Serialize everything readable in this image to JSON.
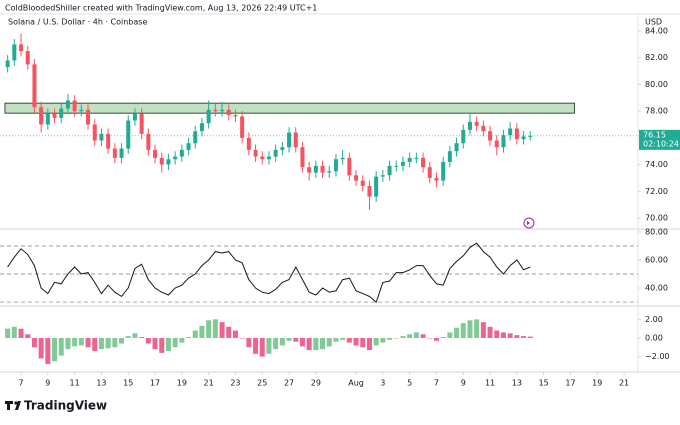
{
  "header": "ColdBloodedShiller created with TradingView.com, Aug 13, 2026 22:49 UTC+1",
  "logo": "TradingView",
  "chart_data": {
    "type": "candlestick",
    "subtitle": "Solana / U.S. Dollar · 4h · Coinbase",
    "currency": "USD",
    "up_color": "#22ab94",
    "down_color": "#f7525f",
    "x": [
      6,
      6.5,
      7,
      7.5,
      8,
      8.5,
      9,
      9.5,
      10,
      10.5,
      11,
      11.5,
      12,
      12.5,
      13,
      13.5,
      14,
      14.5,
      15,
      15.5,
      16,
      16.5,
      17,
      17.5,
      18,
      18.5,
      19,
      19.5,
      20,
      20.5,
      21,
      21.5,
      22,
      22.5,
      23,
      23.5,
      24,
      24.5,
      25,
      25.5,
      26,
      26.5,
      27,
      27.5,
      28,
      28.5,
      29,
      29.5,
      30,
      30.5,
      31,
      31.5,
      32,
      32.5,
      33,
      33.5,
      34,
      34.5,
      35,
      35.5,
      36,
      36.5,
      37,
      37.5,
      38,
      38.5,
      39,
      39.5,
      40,
      40.5,
      41,
      41.5,
      42,
      42.5,
      43,
      43.5,
      44,
      44.5,
      45
    ],
    "open": [
      81.3,
      81.8,
      83,
      82.5,
      81.5,
      78.3,
      77,
      77.8,
      77.5,
      78.2,
      78.8,
      78,
      78.1,
      77,
      75.8,
      76.3,
      75.2,
      74.5,
      75.2,
      77.3,
      77.8,
      76.3,
      75.1,
      74.5,
      74,
      74.4,
      74.6,
      75.1,
      75.6,
      76.5,
      77.1,
      78.1,
      78,
      78.1,
      77.7,
      77.6,
      76,
      75.1,
      74.6,
      74.4,
      74.6,
      75.1,
      75.3,
      76.4,
      75.3,
      73.8,
      73.4,
      73.9,
      73.4,
      73.5,
      74.4,
      74.5,
      73.2,
      72.8,
      72.4,
      71.6,
      73.1,
      73.2,
      73.9,
      73.9,
      74.2,
      74.5,
      74.5,
      73.8,
      73,
      72.8,
      74.2,
      75,
      75.6,
      76.6,
      77.2,
      76.9,
      76.5,
      75.8,
      75.3,
      76.2,
      76.7,
      75.9,
      76.1
    ],
    "high": [
      82.2,
      83.4,
      83.8,
      82.9,
      81.9,
      78.7,
      78.2,
      78.2,
      78.6,
      79.3,
      79.2,
      78.5,
      78.5,
      77.4,
      76.7,
      76.7,
      75.6,
      75.6,
      77.7,
      78.2,
      78.2,
      76.7,
      75.5,
      74.9,
      74.8,
      75,
      75.5,
      76,
      76.9,
      77.5,
      78.8,
      78.6,
      78.7,
      78.5,
      78.1,
      78,
      76.4,
      75.5,
      75,
      75,
      75.5,
      75.7,
      76.8,
      76.8,
      75.7,
      74.2,
      74.3,
      74.3,
      73.9,
      74.8,
      75.1,
      74.9,
      73.6,
      73.2,
      72.8,
      73.5,
      73.6,
      74.3,
      74.3,
      74.6,
      74.9,
      74.9,
      74.9,
      74.2,
      73.4,
      74.6,
      75.4,
      76,
      77,
      77.8,
      77.6,
      77.3,
      76.9,
      76.2,
      76.6,
      77.2,
      77.1,
      76.5,
      76.5
    ],
    "low": [
      80.9,
      81.4,
      82.1,
      81.1,
      77.9,
      76.4,
      76.6,
      77.1,
      77.1,
      77.8,
      77.6,
      77.6,
      76.6,
      75.4,
      75.4,
      74.8,
      74.1,
      74.1,
      74.8,
      76.9,
      75.9,
      74.7,
      74.1,
      73.4,
      73.6,
      74,
      74.2,
      74.7,
      75.2,
      76.1,
      76.7,
      77.6,
      77.6,
      77.3,
      77.2,
      75.6,
      74.7,
      74.2,
      74,
      74,
      74.2,
      74.7,
      74.9,
      74.9,
      73.4,
      72.8,
      73,
      73,
      73,
      73.1,
      74,
      72.8,
      72.4,
      72,
      70.6,
      71.2,
      72.7,
      72.8,
      73.5,
      73.5,
      73.8,
      74.1,
      73.4,
      72.6,
      72.3,
      72.4,
      73.8,
      74.6,
      75.2,
      76.2,
      76.5,
      76.1,
      75.4,
      74.7,
      74.9,
      75.8,
      75.5,
      75.5,
      75.8
    ],
    "close": [
      81.8,
      83,
      82.5,
      81.5,
      78.3,
      77,
      77.8,
      77.5,
      78.2,
      78.8,
      78,
      78.1,
      77,
      75.8,
      76.3,
      75.2,
      74.5,
      75.2,
      77.3,
      77.8,
      76.3,
      75.1,
      74.5,
      74,
      74.4,
      74.6,
      75.1,
      75.6,
      76.5,
      77.1,
      78.1,
      78,
      78.1,
      77.7,
      77.6,
      76,
      75.1,
      74.6,
      74.4,
      74.6,
      75.1,
      75.3,
      76.4,
      75.3,
      73.8,
      73.4,
      73.9,
      73.4,
      73.5,
      74.4,
      74.5,
      73.2,
      72.8,
      72.4,
      71.6,
      73.1,
      73.2,
      73.9,
      73.9,
      74.2,
      74.5,
      74.5,
      73.8,
      73,
      72.8,
      74.2,
      75,
      75.6,
      76.6,
      77.2,
      76.9,
      76.5,
      75.8,
      75.3,
      76.2,
      76.7,
      75.9,
      76.1,
      76.15
    ],
    "countdown": "02:10:24",
    "zone": {
      "x": [
        5.8,
        48.3
      ],
      "y": [
        77.85,
        78.6
      ],
      "color": "#a5d6a7"
    },
    "xlim": [
      5.43,
      53.04
    ],
    "xticks": [
      7,
      9,
      11,
      13,
      15,
      17,
      19,
      21,
      23,
      25,
      27,
      29,
      {
        "value": 32,
        "label": "Aug"
      },
      {
        "value": 34,
        "label": "3"
      },
      {
        "value": 36,
        "label": "5"
      },
      {
        "value": 38,
        "label": "7"
      },
      {
        "value": 40,
        "label": "9"
      },
      {
        "value": 42,
        "label": "11"
      },
      {
        "value": 44,
        "label": "13"
      },
      {
        "value": 46,
        "label": "15"
      },
      {
        "value": 48,
        "label": "17"
      },
      {
        "value": 50,
        "label": "19"
      },
      {
        "value": 52,
        "label": "21"
      }
    ],
    "ylim": [
      69.25,
      85.2
    ],
    "yticks": [
      {
        "value": 84,
        "label": "84.00"
      },
      {
        "value": 82,
        "label": "82.00"
      },
      {
        "value": 80,
        "label": "80.00"
      },
      {
        "value": 78,
        "label": "78.00"
      },
      {
        "value": 74,
        "label": "74.00"
      },
      {
        "value": 72,
        "label": "72.00"
      },
      {
        "value": 70,
        "label": "70.00"
      }
    ],
    "indicators": [
      {
        "type": "line",
        "color": "#131722",
        "values": [
          55,
          62,
          68,
          64,
          56,
          40,
          36,
          44,
          43,
          50,
          55,
          50,
          51,
          44,
          36,
          42,
          37,
          34,
          40,
          54,
          57,
          46,
          40,
          37,
          35,
          40,
          42,
          47,
          50,
          56,
          60,
          66,
          65,
          66,
          60,
          58,
          46,
          40,
          37,
          36,
          39,
          44,
          46,
          55,
          46,
          37,
          35,
          40,
          37,
          38,
          46,
          47,
          38,
          36,
          34,
          30,
          44,
          45,
          51,
          51,
          53,
          56,
          56,
          49,
          43,
          42,
          54,
          59,
          63,
          69,
          72,
          66,
          62,
          55,
          50,
          56,
          60,
          53,
          55
        ],
        "levels": [
          70,
          50,
          30
        ],
        "ylim": [
          27.9,
          81.4
        ],
        "yticks": [
          {
            "value": 80,
            "label": "80.00"
          },
          {
            "value": 60,
            "label": "60.00"
          },
          {
            "value": 40,
            "label": "40.00"
          }
        ]
      },
      {
        "type": "histogram",
        "rise_color": "#81c995",
        "fall_color": "#f06292",
        "values": [
          1.0,
          1.2,
          1.0,
          0.4,
          -1.0,
          -2.2,
          -2.8,
          -2.5,
          -1.9,
          -1.2,
          -0.9,
          -0.8,
          -1.0,
          -1.4,
          -1.2,
          -1.1,
          -1.0,
          -0.6,
          0.2,
          0.5,
          0.1,
          -0.6,
          -1.2,
          -1.6,
          -1.4,
          -1.0,
          -0.5,
          0.1,
          0.8,
          1.3,
          1.9,
          2.0,
          1.7,
          1.2,
          0.8,
          0.0,
          -1.0,
          -1.7,
          -2.0,
          -1.7,
          -1.2,
          -0.8,
          -0.3,
          -0.4,
          -0.9,
          -1.3,
          -1.3,
          -1.2,
          -0.9,
          -0.4,
          -0.2,
          -0.5,
          -0.8,
          -1.0,
          -1.3,
          -0.8,
          -0.5,
          -0.2,
          0.0,
          0.2,
          0.4,
          0.6,
          0.4,
          0.0,
          -0.3,
          0.1,
          0.6,
          1.1,
          1.6,
          1.9,
          2.0,
          1.7,
          1.2,
          0.8,
          0.6,
          0.5,
          0.3,
          0.2,
          0.15
        ],
        "ylim": [
          -3.44,
          3.22
        ],
        "yticks": [
          {
            "value": 2,
            "label": "2.00"
          },
          {
            "value": 0,
            "label": "0.00"
          },
          {
            "value": -2,
            "label": "−2.00"
          }
        ]
      }
    ]
  }
}
